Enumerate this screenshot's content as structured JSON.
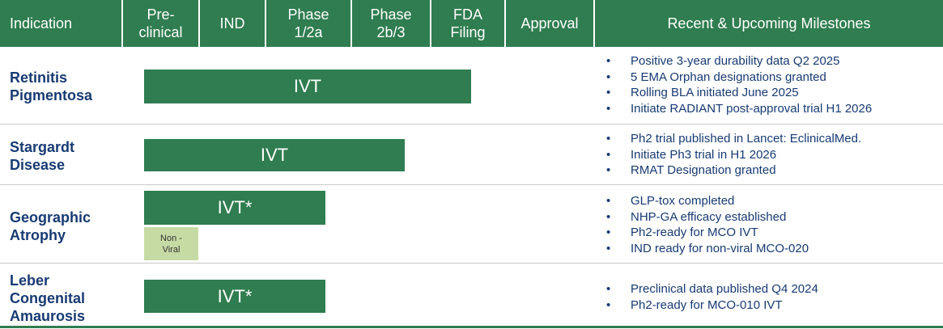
{
  "header": {
    "columns": [
      {
        "key": "indication",
        "label": "Indication"
      },
      {
        "key": "preclinical",
        "label": "Pre-\nclinical"
      },
      {
        "key": "ind",
        "label": "IND"
      },
      {
        "key": "phase12a",
        "label": "Phase\n1/2a"
      },
      {
        "key": "phase2b3",
        "label": "Phase\n2b/3"
      },
      {
        "key": "fda",
        "label": "FDA\nFiling"
      },
      {
        "key": "approval",
        "label": "Approval"
      },
      {
        "key": "milestones",
        "label": "Recent & Upcoming Milestones"
      }
    ]
  },
  "colors": {
    "header_green": "#2f7d50",
    "bar_green": "#2f7d50",
    "light_green": "#c6dba4",
    "navy": "#173a73"
  },
  "rows": [
    {
      "indication": "Retinitis\nPigmentosa",
      "bars": [
        {
          "label": "IVT",
          "stage": "Phase 2b/3"
        }
      ],
      "milestones": [
        "Positive 3-year durability data Q2 2025",
        "5 EMA Orphan designations granted",
        "Rolling BLA initiated June 2025",
        "Initiate RADIANT post-approval trial H1 2026"
      ]
    },
    {
      "indication": "Stargardt\nDisease",
      "bars": [
        {
          "label": "IVT",
          "stage": "Phase 2b/3"
        }
      ],
      "milestones": [
        "Ph2 trial published in Lancet: EclinicalMed.",
        "Initiate Ph3 trial in H1 2026",
        "RMAT Designation granted"
      ]
    },
    {
      "indication": "Geographic\nAtrophy",
      "bars": [
        {
          "label": "IVT*",
          "stage": "Phase 1/2a"
        },
        {
          "label": "Non -\nViral",
          "stage": "Pre-clinical"
        }
      ],
      "milestones": [
        "GLP-tox completed",
        "NHP-GA efficacy established",
        "Ph2-ready for MCO IVT",
        "IND ready for non-viral MCO-020"
      ]
    },
    {
      "indication": "Leber\nCongenital\nAmaurosis",
      "bars": [
        {
          "label": "IVT*",
          "stage": "Phase 1/2a"
        }
      ],
      "milestones": [
        "Preclinical data published Q4 2024",
        "Ph2-ready for MCO-010 IVT"
      ]
    }
  ],
  "bullet": "•"
}
